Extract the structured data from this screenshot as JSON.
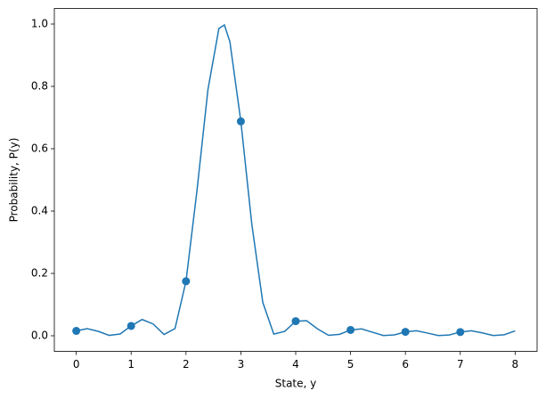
{
  "chart_data": {
    "type": "line-scatter",
    "x_label": "State, y",
    "y_label": "Probability, P(y)",
    "xlim": [
      -0.4,
      8.4
    ],
    "ylim": [
      -0.05,
      1.05
    ],
    "xticks": [
      0,
      1,
      2,
      3,
      4,
      5,
      6,
      7,
      8
    ],
    "yticks": [
      {
        "value": 0,
        "label": "0.0"
      },
      {
        "value": 0.2,
        "label": "0.2"
      },
      {
        "value": 0.4,
        "label": "0.4"
      },
      {
        "value": 0.6,
        "label": "0.6"
      },
      {
        "value": 0.8,
        "label": "0.8"
      },
      {
        "value": 1,
        "label": "1.0"
      }
    ],
    "color": "#1f77b4",
    "line": {
      "x": [
        0,
        0.2,
        0.4,
        0.6,
        0.8,
        1,
        1.2,
        1.4,
        1.6,
        1.8,
        2,
        2.2,
        2.4,
        2.6,
        2.7,
        2.8,
        3,
        3.2,
        3.4,
        3.6,
        3.8,
        4,
        4.2,
        4.4,
        4.6,
        4.8,
        5,
        5.2,
        5.4,
        5.6,
        5.8,
        6,
        6.2,
        6.4,
        6.6,
        6.8,
        7,
        7.2,
        7.4,
        7.6,
        7.8,
        8
      ],
      "values": [
        0.0156,
        0.0228,
        0.0143,
        0.0013,
        0.0058,
        0.0316,
        0.0521,
        0.0379,
        0.0041,
        0.0232,
        0.1749,
        0.4655,
        0.7898,
        0.9858,
        0.997,
        0.9435,
        0.6877,
        0.3575,
        0.107,
        0.0053,
        0.014,
        0.0469,
        0.0482,
        0.0218,
        0.0014,
        0.0047,
        0.0186,
        0.022,
        0.0112,
        0.0008,
        0.0029,
        0.0126,
        0.016,
        0.0087,
        0.0007,
        0.0026,
        0.0119,
        0.0162,
        0.0094,
        0.0008,
        0.0032,
        0.0156
      ]
    },
    "points": {
      "x": [
        0,
        1,
        2,
        3,
        4,
        5,
        6,
        7
      ],
      "values": [
        0.0156,
        0.0316,
        0.1749,
        0.6877,
        0.0469,
        0.0186,
        0.0126,
        0.0119
      ]
    }
  }
}
